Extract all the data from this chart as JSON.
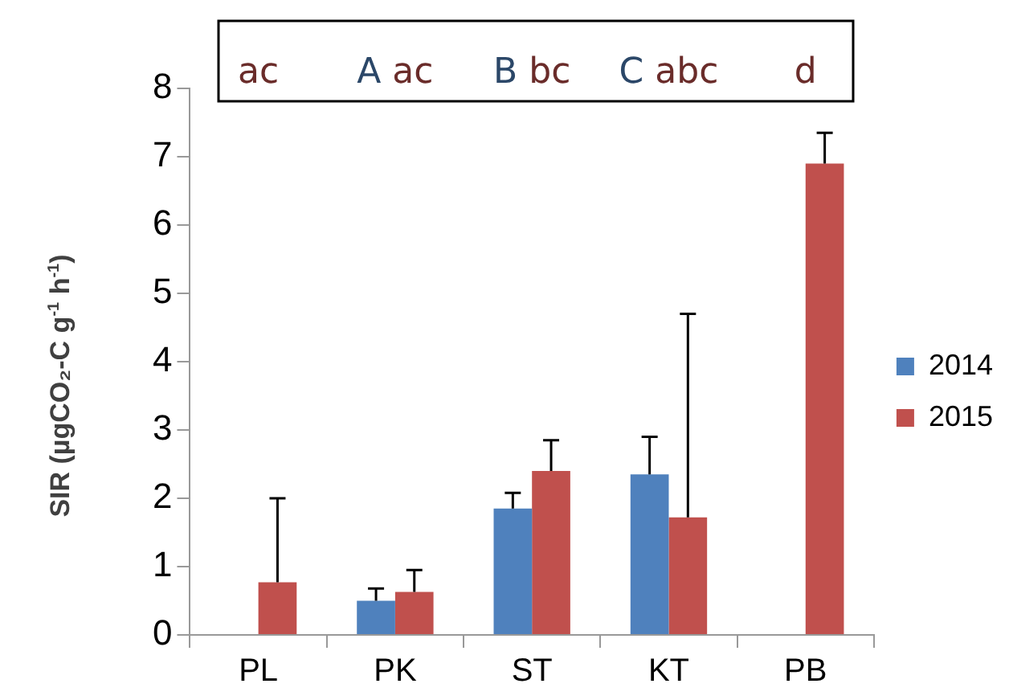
{
  "chart_data": {
    "type": "bar",
    "ylabel": "SIR (µgCO₂-C g$^{-1}$ h$^{-1}$)",
    "categories": [
      "PL",
      "PK",
      "ST",
      "KT",
      "PB"
    ],
    "series": [
      {
        "name": "2014",
        "color": "#4f81bd",
        "values": [
          null,
          0.5,
          1.85,
          2.35,
          null
        ],
        "errors": [
          null,
          [
            0.5,
            0.68
          ],
          [
            1.85,
            2.08
          ],
          [
            2.35,
            2.9
          ],
          null
        ]
      },
      {
        "name": "2015",
        "color": "#c0504d",
        "values": [
          0.77,
          0.63,
          2.4,
          1.72,
          6.9
        ],
        "errors": [
          [
            0.77,
            2.0
          ],
          [
            0.63,
            0.95
          ],
          [
            2.4,
            2.85
          ],
          [
            1.72,
            4.7
          ],
          [
            6.9,
            7.35
          ]
        ]
      }
    ],
    "annotations": [
      "ac",
      "A ac",
      "B bc",
      "C abc",
      "d"
    ],
    "ylim": [
      0,
      8
    ],
    "yticks": [
      0,
      1,
      2,
      3,
      4,
      5,
      6,
      7,
      8
    ],
    "grid": false,
    "legend": "right"
  }
}
